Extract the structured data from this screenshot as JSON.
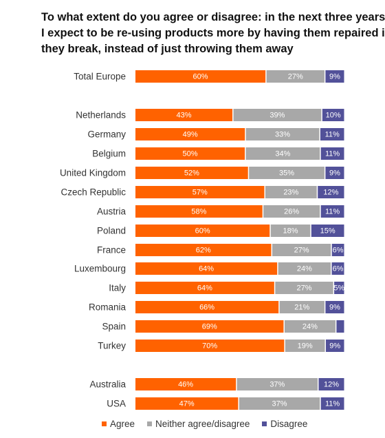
{
  "chart_data": {
    "type": "bar",
    "orientation": "horizontal",
    "stacked": true,
    "title_lines": [
      "To what extent do you agree or disagree: in the next three years",
      "I expect to be re-using products more by having them repaired if",
      "they break, instead of just throwing them away"
    ],
    "categories": [
      "Total Europe",
      "Netherlands",
      "Germany",
      "Belgium",
      "United Kingdom",
      "Czech Republic",
      "Austria",
      "Poland",
      "France",
      "Luxembourg",
      "Italy",
      "Romania",
      "Spain",
      "Turkey",
      "Australia",
      "USA"
    ],
    "series": [
      {
        "name": "Agree",
        "color": "#ff6200",
        "values": [
          60,
          43,
          49,
          50,
          52,
          57,
          58,
          60,
          62,
          64,
          64,
          66,
          69,
          70,
          46,
          47
        ],
        "labels": [
          "60%",
          "43%",
          "49%",
          "50%",
          "52%",
          "57%",
          "58%",
          "60%",
          "62%",
          "64%",
          "64%",
          "66%",
          "69%",
          "70%",
          "46%",
          "47%"
        ]
      },
      {
        "name": "Neither agree/disagree",
        "color": "#a8a8a8",
        "values": [
          27,
          39,
          33,
          34,
          35,
          23,
          26,
          18,
          27,
          24,
          27,
          21,
          24,
          19,
          37,
          37
        ],
        "labels": [
          "27%",
          "39%",
          "33%",
          "34%",
          "35%",
          "23%",
          "26%",
          "18%",
          "27%",
          "24%",
          "27%",
          "21%",
          "24%",
          "19%",
          "37%",
          "37%"
        ]
      },
      {
        "name": "Disagree",
        "color": "#525199",
        "values": [
          9,
          10,
          11,
          11,
          9,
          12,
          11,
          15,
          6,
          6,
          5,
          9,
          4,
          9,
          12,
          11
        ],
        "labels": [
          "9%",
          "10%",
          "11%",
          "11%",
          "9%",
          "12%",
          "11%",
          "15%",
          "6%",
          "6%",
          "5%",
          "9%",
          "",
          "9%",
          "12%",
          "11%"
        ]
      }
    ],
    "legend_position": "bottom",
    "grid": false
  }
}
